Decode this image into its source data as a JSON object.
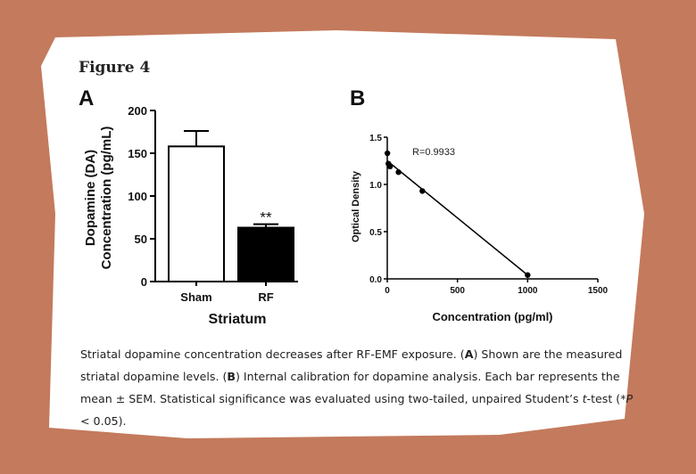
{
  "figure": {
    "title": "Figure 4",
    "panel_a_letter": "A",
    "panel_b_letter": "B"
  },
  "caption": {
    "part1": "Striatal dopamine concentration decreases after RF-EMF exposure. (",
    "bold1": "A",
    "part2": ") Shown are the measured striatal dopamine levels. (",
    "bold2": "B",
    "part3": ") Internal calibration for dopamine analysis. Each bar represents the mean ± SEM. Statistical significance was evaluated using two-tailed, unpaired Student’s ",
    "italic1": "t",
    "part4": "-test (*",
    "italic2": "P",
    "part5": " < 0.05)."
  },
  "chart_data": [
    {
      "type": "bar",
      "categories": [
        "Sham",
        "RF"
      ],
      "values": [
        158,
        63
      ],
      "errors": [
        18,
        4
      ],
      "significance": [
        "",
        "**"
      ],
      "bar_fills": [
        "#ffffff",
        "#000000"
      ],
      "xlabel": "Striatum",
      "ylabel_line1": "Dopamine (DA)",
      "ylabel_line2": "Concentration (pg/mL)",
      "ylim": [
        0,
        200
      ],
      "yticks": [
        "0",
        "50",
        "100",
        "150",
        "200"
      ],
      "ytick_values": [
        0,
        50,
        100,
        150,
        200
      ]
    },
    {
      "type": "scatter",
      "annotation": "R=0.9933",
      "xlabel": "Concentration (pg/ml)",
      "ylabel": "Optical Density",
      "xlim": [
        0,
        1500
      ],
      "ylim": [
        0,
        1.5
      ],
      "xticks": [
        "0",
        "500",
        "1000",
        "1500"
      ],
      "xtick_values": [
        0,
        500,
        1000,
        1500
      ],
      "yticks": [
        "0.0",
        "0.5",
        "1.0",
        "1.5"
      ],
      "ytick_values": [
        0,
        0.5,
        1.0,
        1.5
      ],
      "points": [
        {
          "x": 1,
          "y": 1.33
        },
        {
          "x": 8,
          "y": 1.22
        },
        {
          "x": 20,
          "y": 1.19
        },
        {
          "x": 80,
          "y": 1.13
        },
        {
          "x": 250,
          "y": 0.93
        },
        {
          "x": 1000,
          "y": 0.04
        }
      ],
      "fit_line": [
        {
          "x": 0,
          "y": 1.25
        },
        {
          "x": 1000,
          "y": 0.04
        }
      ]
    }
  ]
}
